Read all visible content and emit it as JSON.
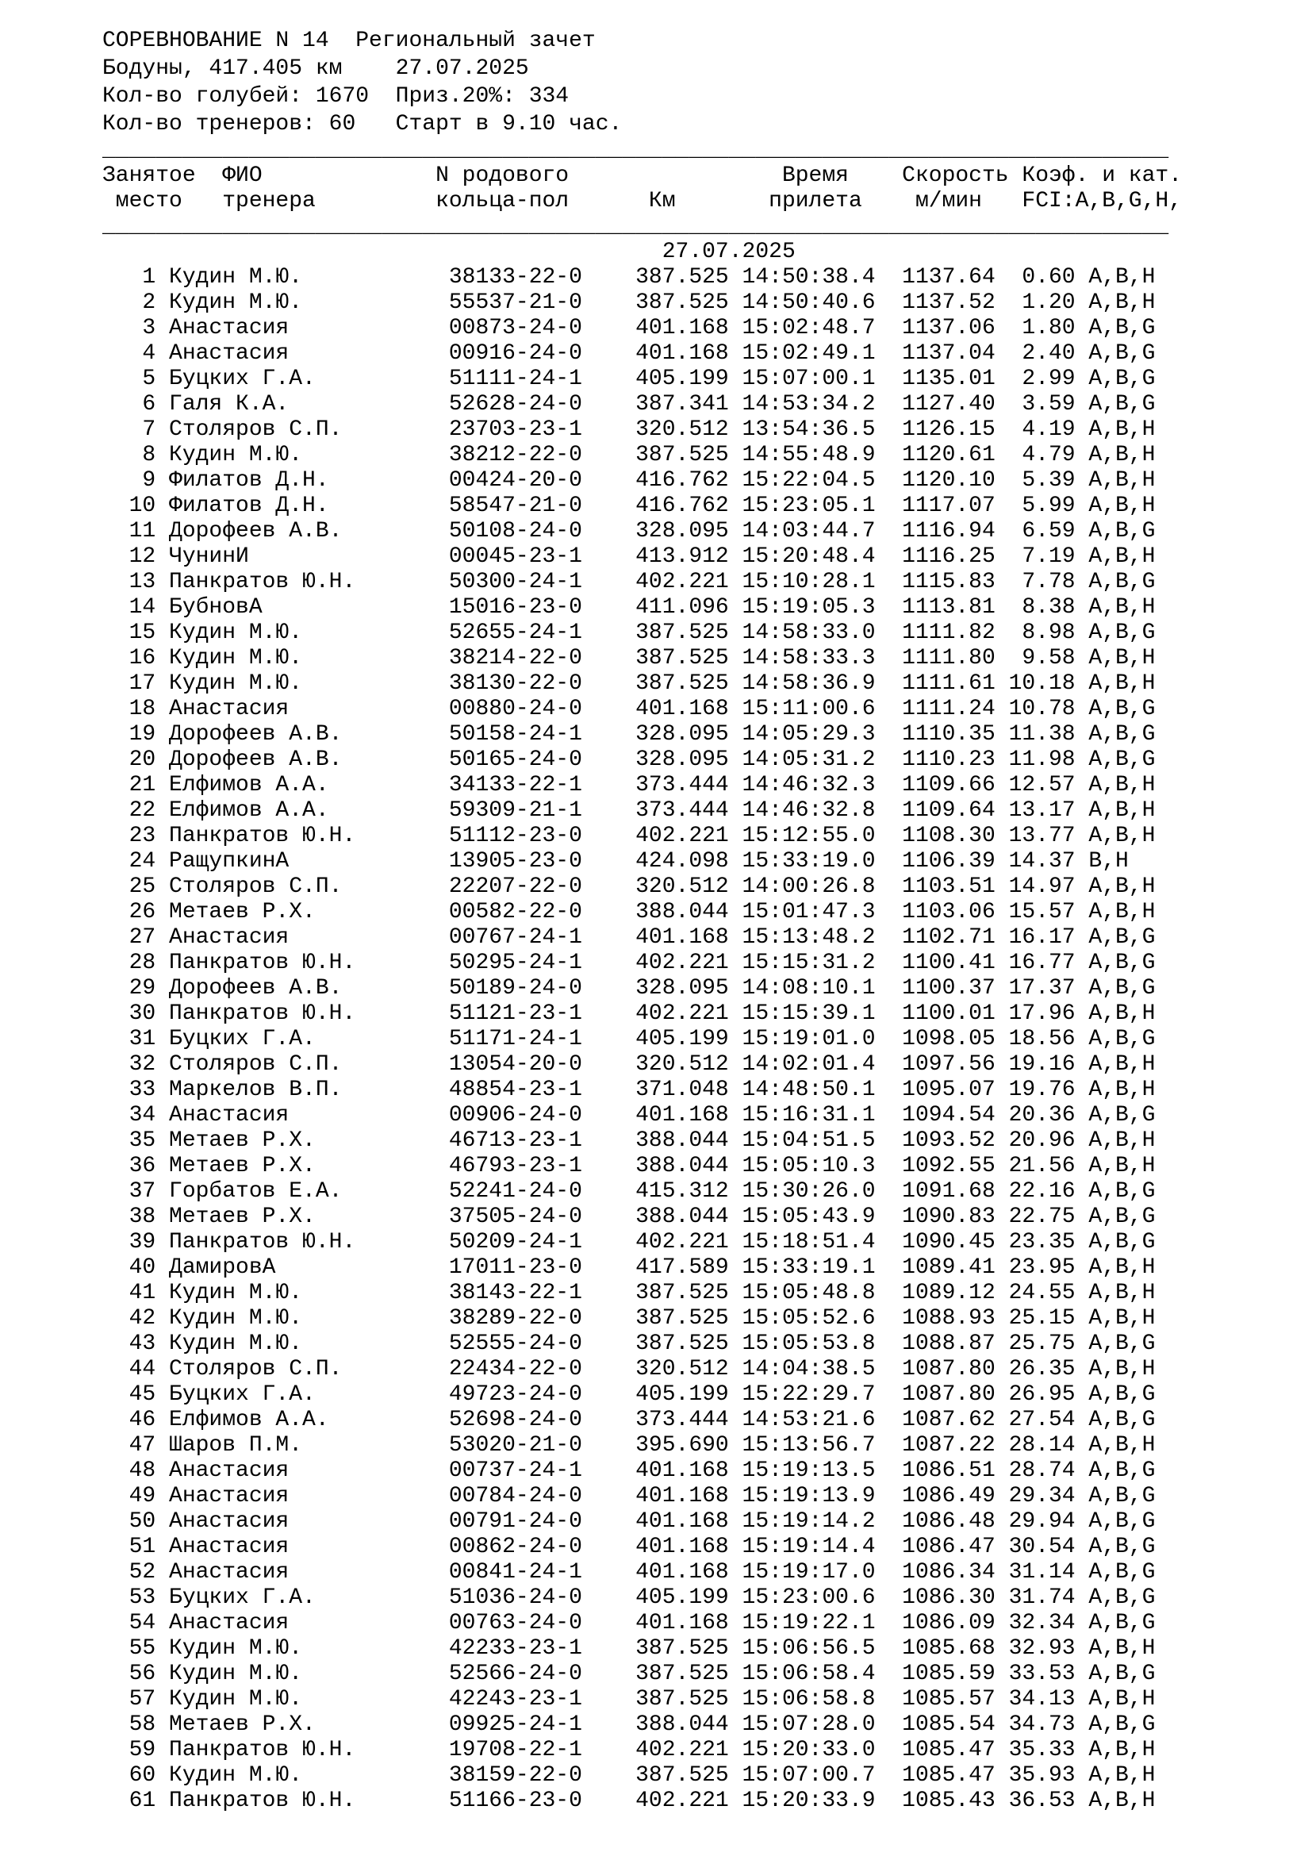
{
  "doc": {
    "line1": "СОРЕВНОВАНИЕ N 14  Региональный зачет",
    "line2": "Бодуны, 417.405 км    27.07.2025",
    "line3": "Кол-во голубей: 1670  Приз.20%: 334",
    "line4": "Кол-во тренеров: 60   Старт в 9.10 час.",
    "text_color": "#000000",
    "background_color": "#ffffff"
  },
  "table": {
    "header_row1": {
      "place": "Занятое",
      "name": "ФИО",
      "ring": "N родового",
      "time": "Время",
      "speed": "Скорость",
      "coef": "Коэф. и кат."
    },
    "header_row2": {
      "place": "место",
      "name": "тренера",
      "ring": "кольца-пол",
      "km": "Км",
      "time": "прилета",
      "speed": "м/мин",
      "coef": "FCI:A,B,G,H,"
    },
    "date_row": "27.07.2025",
    "rows": [
      [
        "1",
        "Кудин М.Ю.",
        "38133-22-0",
        "387.525",
        "14:50:38.4",
        "1137.64",
        "0.60",
        "А,В,Н"
      ],
      [
        "2",
        "Кудин М.Ю.",
        "55537-21-0",
        "387.525",
        "14:50:40.6",
        "1137.52",
        "1.20",
        "А,В,Н"
      ],
      [
        "3",
        "Анастасия",
        "00873-24-0",
        "401.168",
        "15:02:48.7",
        "1137.06",
        "1.80",
        "А,В,G"
      ],
      [
        "4",
        "Анастасия",
        "00916-24-0",
        "401.168",
        "15:02:49.1",
        "1137.04",
        "2.40",
        "А,В,G"
      ],
      [
        "5",
        "Буцких Г.А.",
        "51111-24-1",
        "405.199",
        "15:07:00.1",
        "1135.01",
        "2.99",
        "А,В,G"
      ],
      [
        "6",
        "Галя К.А.",
        "52628-24-0",
        "387.341",
        "14:53:34.2",
        "1127.40",
        "3.59",
        "А,В,G"
      ],
      [
        "7",
        "Столяров С.П.",
        "23703-23-1",
        "320.512",
        "13:54:36.5",
        "1126.15",
        "4.19",
        "А,В,Н"
      ],
      [
        "8",
        "Кудин М.Ю.",
        "38212-22-0",
        "387.525",
        "14:55:48.9",
        "1120.61",
        "4.79",
        "А,В,Н"
      ],
      [
        "9",
        "Филатов Д.Н.",
        "00424-20-0",
        "416.762",
        "15:22:04.5",
        "1120.10",
        "5.39",
        "А,В,Н"
      ],
      [
        "10",
        "Филатов Д.Н.",
        "58547-21-0",
        "416.762",
        "15:23:05.1",
        "1117.07",
        "5.99",
        "А,В,Н"
      ],
      [
        "11",
        "Дорофеев А.В.",
        "50108-24-0",
        "328.095",
        "14:03:44.7",
        "1116.94",
        "6.59",
        "А,В,G"
      ],
      [
        "12",
        "ЧунинИ",
        "00045-23-1",
        "413.912",
        "15:20:48.4",
        "1116.25",
        "7.19",
        "А,В,Н"
      ],
      [
        "13",
        "Панкратов Ю.Н.",
        "50300-24-1",
        "402.221",
        "15:10:28.1",
        "1115.83",
        "7.78",
        "А,В,G"
      ],
      [
        "14",
        "БубновА",
        "15016-23-0",
        "411.096",
        "15:19:05.3",
        "1113.81",
        "8.38",
        "А,В,Н"
      ],
      [
        "15",
        "Кудин М.Ю.",
        "52655-24-1",
        "387.525",
        "14:58:33.0",
        "1111.82",
        "8.98",
        "А,В,G"
      ],
      [
        "16",
        "Кудин М.Ю.",
        "38214-22-0",
        "387.525",
        "14:58:33.3",
        "1111.80",
        "9.58",
        "А,В,Н"
      ],
      [
        "17",
        "Кудин М.Ю.",
        "38130-22-0",
        "387.525",
        "14:58:36.9",
        "1111.61",
        "10.18",
        "А,В,Н"
      ],
      [
        "18",
        "Анастасия",
        "00880-24-0",
        "401.168",
        "15:11:00.6",
        "1111.24",
        "10.78",
        "А,В,G"
      ],
      [
        "19",
        "Дорофеев А.В.",
        "50158-24-1",
        "328.095",
        "14:05:29.3",
        "1110.35",
        "11.38",
        "А,В,G"
      ],
      [
        "20",
        "Дорофеев А.В.",
        "50165-24-0",
        "328.095",
        "14:05:31.2",
        "1110.23",
        "11.98",
        "А,В,G"
      ],
      [
        "21",
        "Елфимов А.А.",
        "34133-22-1",
        "373.444",
        "14:46:32.3",
        "1109.66",
        "12.57",
        "А,В,Н"
      ],
      [
        "22",
        "Елфимов А.А.",
        "59309-21-1",
        "373.444",
        "14:46:32.8",
        "1109.64",
        "13.17",
        "А,В,Н"
      ],
      [
        "23",
        "Панкратов Ю.Н.",
        "51112-23-0",
        "402.221",
        "15:12:55.0",
        "1108.30",
        "13.77",
        "А,В,Н"
      ],
      [
        "24",
        "РащупкинА",
        "13905-23-0",
        "424.098",
        "15:33:19.0",
        "1106.39",
        "14.37",
        "В,Н"
      ],
      [
        "25",
        "Столяров С.П.",
        "22207-22-0",
        "320.512",
        "14:00:26.8",
        "1103.51",
        "14.97",
        "А,В,Н"
      ],
      [
        "26",
        "Метаев Р.Х.",
        "00582-22-0",
        "388.044",
        "15:01:47.3",
        "1103.06",
        "15.57",
        "А,В,Н"
      ],
      [
        "27",
        "Анастасия",
        "00767-24-1",
        "401.168",
        "15:13:48.2",
        "1102.71",
        "16.17",
        "А,В,G"
      ],
      [
        "28",
        "Панкратов Ю.Н.",
        "50295-24-1",
        "402.221",
        "15:15:31.2",
        "1100.41",
        "16.77",
        "А,В,G"
      ],
      [
        "29",
        "Дорофеев А.В.",
        "50189-24-0",
        "328.095",
        "14:08:10.1",
        "1100.37",
        "17.37",
        "А,В,G"
      ],
      [
        "30",
        "Панкратов Ю.Н.",
        "51121-23-1",
        "402.221",
        "15:15:39.1",
        "1100.01",
        "17.96",
        "А,В,Н"
      ],
      [
        "31",
        "Буцких Г.А.",
        "51171-24-1",
        "405.199",
        "15:19:01.0",
        "1098.05",
        "18.56",
        "А,В,G"
      ],
      [
        "32",
        "Столяров С.П.",
        "13054-20-0",
        "320.512",
        "14:02:01.4",
        "1097.56",
        "19.16",
        "А,В,Н"
      ],
      [
        "33",
        "Маркелов В.П.",
        "48854-23-1",
        "371.048",
        "14:48:50.1",
        "1095.07",
        "19.76",
        "А,В,Н"
      ],
      [
        "34",
        "Анастасия",
        "00906-24-0",
        "401.168",
        "15:16:31.1",
        "1094.54",
        "20.36",
        "А,В,G"
      ],
      [
        "35",
        "Метаев Р.Х.",
        "46713-23-1",
        "388.044",
        "15:04:51.5",
        "1093.52",
        "20.96",
        "А,В,Н"
      ],
      [
        "36",
        "Метаев Р.Х.",
        "46793-23-1",
        "388.044",
        "15:05:10.3",
        "1092.55",
        "21.56",
        "А,В,Н"
      ],
      [
        "37",
        "Горбатов Е.А.",
        "52241-24-0",
        "415.312",
        "15:30:26.0",
        "1091.68",
        "22.16",
        "А,В,G"
      ],
      [
        "38",
        "Метаев Р.Х.",
        "37505-24-0",
        "388.044",
        "15:05:43.9",
        "1090.83",
        "22.75",
        "А,В,G"
      ],
      [
        "39",
        "Панкратов Ю.Н.",
        "50209-24-1",
        "402.221",
        "15:18:51.4",
        "1090.45",
        "23.35",
        "А,В,G"
      ],
      [
        "40",
        "ДамировА",
        "17011-23-0",
        "417.589",
        "15:33:19.1",
        "1089.41",
        "23.95",
        "А,В,Н"
      ],
      [
        "41",
        "Кудин М.Ю.",
        "38143-22-1",
        "387.525",
        "15:05:48.8",
        "1089.12",
        "24.55",
        "А,В,Н"
      ],
      [
        "42",
        "Кудин М.Ю.",
        "38289-22-0",
        "387.525",
        "15:05:52.6",
        "1088.93",
        "25.15",
        "А,В,Н"
      ],
      [
        "43",
        "Кудин М.Ю.",
        "52555-24-0",
        "387.525",
        "15:05:53.8",
        "1088.87",
        "25.75",
        "А,В,G"
      ],
      [
        "44",
        "Столяров С.П.",
        "22434-22-0",
        "320.512",
        "14:04:38.5",
        "1087.80",
        "26.35",
        "А,В,Н"
      ],
      [
        "45",
        "Буцких Г.А.",
        "49723-24-0",
        "405.199",
        "15:22:29.7",
        "1087.80",
        "26.95",
        "А,В,G"
      ],
      [
        "46",
        "Елфимов А.А.",
        "52698-24-0",
        "373.444",
        "14:53:21.6",
        "1087.62",
        "27.54",
        "А,В,G"
      ],
      [
        "47",
        "Шаров П.М.",
        "53020-21-0",
        "395.690",
        "15:13:56.7",
        "1087.22",
        "28.14",
        "А,В,Н"
      ],
      [
        "48",
        "Анастасия",
        "00737-24-1",
        "401.168",
        "15:19:13.5",
        "1086.51",
        "28.74",
        "А,В,G"
      ],
      [
        "49",
        "Анастасия",
        "00784-24-0",
        "401.168",
        "15:19:13.9",
        "1086.49",
        "29.34",
        "А,В,G"
      ],
      [
        "50",
        "Анастасия",
        "00791-24-0",
        "401.168",
        "15:19:14.2",
        "1086.48",
        "29.94",
        "А,В,G"
      ],
      [
        "51",
        "Анастасия",
        "00862-24-0",
        "401.168",
        "15:19:14.4",
        "1086.47",
        "30.54",
        "А,В,G"
      ],
      [
        "52",
        "Анастасия",
        "00841-24-1",
        "401.168",
        "15:19:17.0",
        "1086.34",
        "31.14",
        "А,В,G"
      ],
      [
        "53",
        "Буцких Г.А.",
        "51036-24-0",
        "405.199",
        "15:23:00.6",
        "1086.30",
        "31.74",
        "А,В,G"
      ],
      [
        "54",
        "Анастасия",
        "00763-24-0",
        "401.168",
        "15:19:22.1",
        "1086.09",
        "32.34",
        "А,В,G"
      ],
      [
        "55",
        "Кудин М.Ю.",
        "42233-23-1",
        "387.525",
        "15:06:56.5",
        "1085.68",
        "32.93",
        "А,В,Н"
      ],
      [
        "56",
        "Кудин М.Ю.",
        "52566-24-0",
        "387.525",
        "15:06:58.4",
        "1085.59",
        "33.53",
        "А,В,G"
      ],
      [
        "57",
        "Кудин М.Ю.",
        "42243-23-1",
        "387.525",
        "15:06:58.8",
        "1085.57",
        "34.13",
        "А,В,Н"
      ],
      [
        "58",
        "Метаев Р.Х.",
        "09925-24-1",
        "388.044",
        "15:07:28.0",
        "1085.54",
        "34.73",
        "А,В,G"
      ],
      [
        "59",
        "Панкратов Ю.Н.",
        "19708-22-1",
        "402.221",
        "15:20:33.0",
        "1085.47",
        "35.33",
        "А,В,Н"
      ],
      [
        "60",
        "Кудин М.Ю.",
        "38159-22-0",
        "387.525",
        "15:07:00.7",
        "1085.47",
        "35.93",
        "А,В,Н"
      ],
      [
        "61",
        "Панкратов Ю.Н.",
        "51166-23-0",
        "402.221",
        "15:20:33.9",
        "1085.43",
        "36.53",
        "А,В,Н"
      ]
    ]
  }
}
